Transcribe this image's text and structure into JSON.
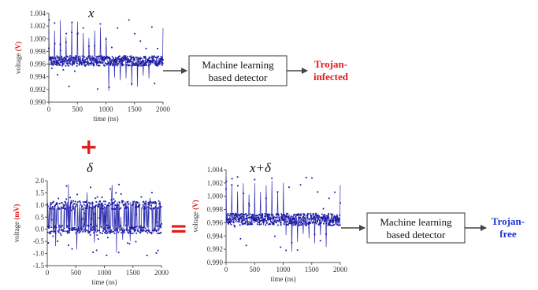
{
  "colors": {
    "signal": "#1a1aa6",
    "trojan_infected": "#e31b1b",
    "trojan_free": "#1a33cc",
    "operator": "#e31b1b",
    "ylabel_unit": "#e31b1b",
    "box_border": "#333333",
    "box_fill": "#ffffff",
    "arrow": "#444444"
  },
  "labels": {
    "x_symbol": "x",
    "delta_symbol": "δ",
    "sum_symbol": "x+δ",
    "plus_sign": "+",
    "equals_sign": "="
  },
  "detector_top": {
    "line1": "Machine learning",
    "line2": "based detector"
  },
  "detector_bottom": {
    "line1": "Machine learning",
    "line2": "based detector"
  },
  "result_top": {
    "line1": "Trojan-",
    "line2": "infected"
  },
  "result_bottom": {
    "line1": "Trojan-",
    "line2": "free"
  },
  "chart_data": [
    {
      "id": "x",
      "type": "scatter",
      "title": "x",
      "xlabel": "time (ns)",
      "ylabel": "voltage",
      "ylabel_unit": "(V)",
      "xlim": [
        0,
        2000
      ],
      "ylim": [
        0.99,
        1.004
      ],
      "x_ticks": [
        "0",
        "500",
        "1000",
        "1500",
        "2000"
      ],
      "y_ticks": [
        "0.990",
        "0.992",
        "0.994",
        "0.996",
        "0.998",
        "1.000",
        "1.002",
        "1.004"
      ],
      "baseline": 0.9965,
      "band": 0.0008,
      "spike_max": 1.003,
      "spike_min": 0.9915,
      "spike_period_ns": 100
    },
    {
      "id": "delta",
      "type": "scatter",
      "title": "δ",
      "xlabel": "time (ns)",
      "ylabel": "voltage",
      "ylabel_unit": "(mV)",
      "xlim": [
        0,
        2000
      ],
      "ylim": [
        -1.5,
        2.0
      ],
      "x_ticks": [
        "0",
        "500",
        "1000",
        "1500",
        "2000"
      ],
      "y_ticks": [
        "-1.5",
        "-1.0",
        "-0.5",
        "0.0",
        "0.5",
        "1.0",
        "1.5",
        "2.0"
      ],
      "level_high": 1.0,
      "level_low": 0.0,
      "noise_max": 1.9,
      "noise_min": -1.1
    },
    {
      "id": "x_plus_delta",
      "type": "scatter",
      "title": "x+δ",
      "xlabel": "time (ns)",
      "ylabel": "voltage",
      "ylabel_unit": "(V)",
      "xlim": [
        0,
        2000
      ],
      "ylim": [
        0.99,
        1.004
      ],
      "x_ticks": [
        "0",
        "500",
        "1000",
        "1500",
        "2000"
      ],
      "y_ticks": [
        "0.990",
        "0.992",
        "0.994",
        "0.996",
        "0.998",
        "1.000",
        "1.002",
        "1.004"
      ],
      "baseline": 0.9965,
      "band": 0.0009,
      "spike_max": 1.003,
      "spike_min": 0.9915,
      "spike_period_ns": 100
    }
  ]
}
